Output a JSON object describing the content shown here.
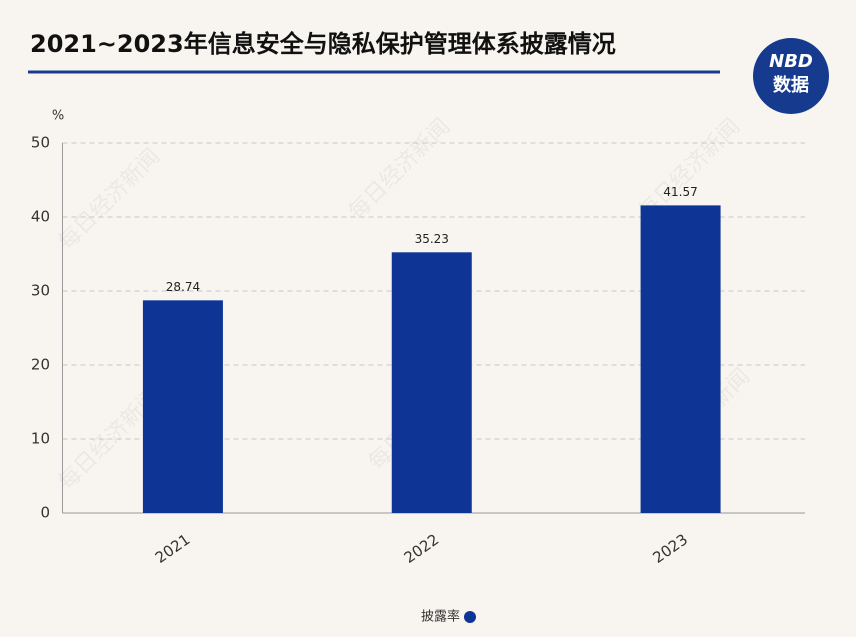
{
  "chart_data": {
    "type": "bar",
    "title": "2021~2023年信息安全与隐私保护管理体系披露情况",
    "y_unit": "%",
    "logo_top": "NBD",
    "logo_bottom": "数据",
    "watermark": "每日经济新闻",
    "categories": [
      "2021",
      "2022",
      "2023"
    ],
    "series": [
      {
        "name": "披露率",
        "color": "#0e3596",
        "values": [
          28.74,
          35.23,
          41.57
        ]
      }
    ],
    "ylim": [
      0,
      50
    ],
    "yticks": [
      0,
      10,
      20,
      30,
      40,
      50
    ],
    "grid": true,
    "legend": "bottom"
  }
}
